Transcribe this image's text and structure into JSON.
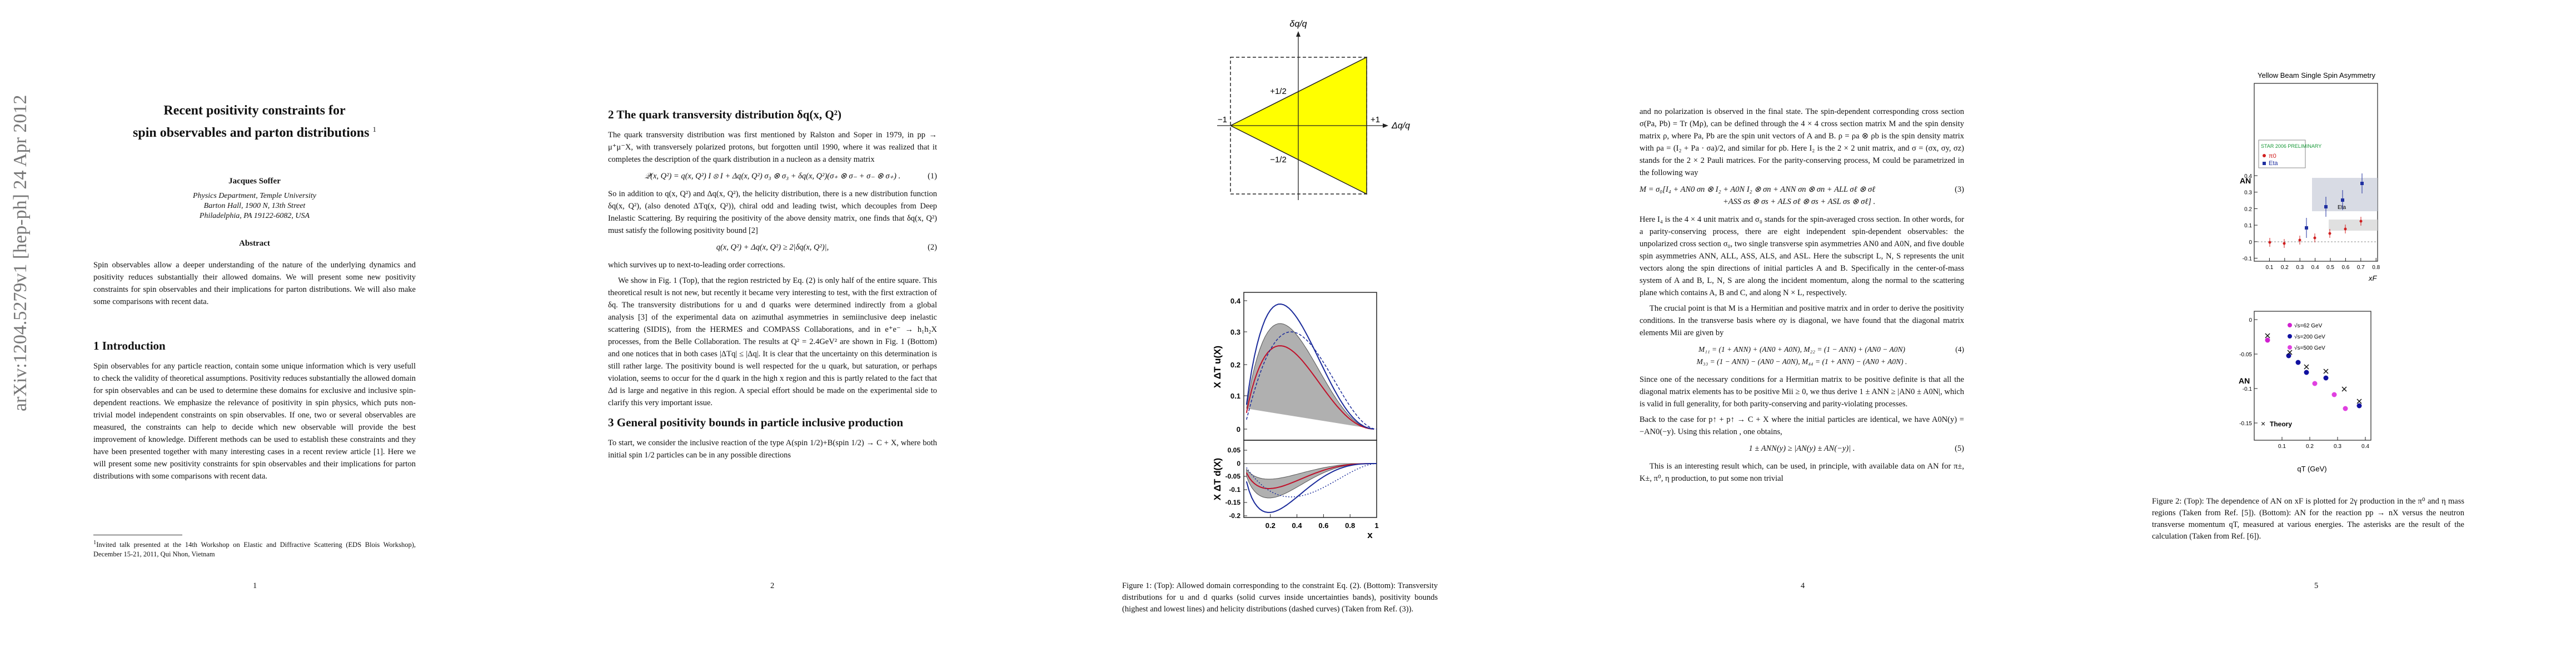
{
  "arxiv_stamp": "arXiv:1204.5279v1  [hep-ph]  24 Apr 2012",
  "page1": {
    "title_lines": [
      "Recent positivity constraints for",
      "spin observables and parton distributions"
    ],
    "title_footnote_mark": "1",
    "author": "Jacques Soffer",
    "affiliation": [
      "Physics Department, Temple University",
      "Barton Hall, 1900 N, 13th Street",
      "Philadelphia, PA 19122-6082, USA"
    ],
    "abstract_heading": "Abstract",
    "abstract": "Spin observables allow a deeper understanding of the nature of the underlying dynamics and positivity reduces substantially their allowed domains. We will present some new positivity constraints for spin observables and their implications for parton distributions. We will also make some comparisons with recent data.",
    "section_heading": "1   Introduction",
    "paragraph": "Spin observables for any particle reaction, contain some unique information which is very usefull to check the validity of theoretical assumptions. Positivity reduces substantially the allowed domain for spin observables and can be used to determine these domains for exclusive and inclusive spin-dependent reactions. We emphasize the relevance of positivity in spin physics, which puts non-trivial model independent constraints on spin observables. If one, two or several observables are measured, the constraints can help to decide which new observable will provide the best improvement of knowledge. Different methods can be used to establish these constraints and they have been presented together with many interesting cases in a recent review article [1]. Here we will present some new positivity constraints for spin observables and their implications for parton distributions with some comparisons with recent data.",
    "footnote_mark": "1",
    "footnote": "Invited talk presented at the 14th Workshop on Elastic and Diffractive Scattering (EDS Blois Workshop), December 15-21, 2011, Qui Nhon, Vietnam",
    "page_number": "1"
  },
  "page2": {
    "section2_heading": "2   The quark transversity distribution δq(x, Q²)",
    "p1": "The quark transversity distribution was first mentioned by Ralston and Soper in 1979, in pp → μ⁺μ⁻X, with transversely polarized protons, but forgotten until 1990, where it was realized that it completes the description of the quark distribution in a nucleon as a density matrix",
    "eq1": "𝒬(x, Q²) = q(x, Q²) I ⊗ I + Δq(x, Q²) σ₃ ⊗ σ₃ + δq(x, Q²)(σ₊ ⊗ σ₋ + σ₋ ⊗ σ₊) .",
    "eq1_number": "(1)",
    "p2": "So in addition to q(x, Q²) and Δq(x, Q²), the helicity distribution, there is a new distribution function δq(x, Q²), (also denoted ΔTq(x, Q²)), chiral odd and leading twist, which decouples from Deep Inelastic Scattering. By requiring the positivity of the above density matrix, one finds that δq(x, Q²) must satisfy the following positivity bound [2]",
    "eq2": "q(x, Q²) + Δq(x, Q²) ≥ 2|δq(x, Q²)|,",
    "eq2_number": "(2)",
    "p3": "which survives up to next-to-leading order corrections.",
    "p4": "We show in Fig. 1 (Top), that the region restricted by Eq. (2) is only half of the entire square. This theoretical result is not new, but recently it became very interesting to test, with the first extraction of δq. The transversity distributions for u and d quarks were determined indirectly from a global analysis [3] of the experimental data on azimuthal asymmetries in semiinclusive deep inelastic scattering (SIDIS), from the HERMES and COMPASS Collaborations, and in e⁺e⁻ → h₁h₂X processes, from the Belle Collaboration. The results at Q² = 2.4GeV² are shown in Fig. 1 (Bottom) and one notices that in both cases |ΔTq| ≤ |Δq|. It is clear that the uncertainty on this determination is still rather large. The positivity bound is well respected for the u quark, but saturation, or perhaps violation, seems to occur for the d quark in the high x region and this is partly related to the fact that Δd is large and negative in this region. A special effort should be made on the experimental side to clarify this very important issue.",
    "section3_heading": "3   General positivity bounds in particle inclusive production",
    "p5": "To start, we consider the inclusive reaction of the type A(spin 1/2)+B(spin 1/2) → C + X, where both initial spin 1/2 particles can be in any possible directions",
    "page_number": "2"
  },
  "page3": {
    "top_figure": {
      "y_axis_label": "δq/q",
      "x_axis_label": "Δq/q",
      "upper_half": "+1/2",
      "lower_half": "−1/2",
      "left_end": "−1",
      "right_end": "+1"
    },
    "bottom_figure": {
      "upper_y_label": "X ΔT u(X)",
      "upper_yticks": [
        "0.4",
        "0.3",
        "0.2",
        "0.1",
        "0"
      ],
      "lower_y_label": "X ΔT d(X)",
      "lower_yticks": [
        "0.05",
        "0",
        "-0.05",
        "-0.1",
        "-0.15",
        "-0.2"
      ],
      "xticks": [
        "0.2",
        "0.4",
        "0.6",
        "0.8",
        "1"
      ],
      "x_label": "x"
    },
    "caption": "Figure 1: (Top): Allowed domain corresponding to the constraint Eq. (2). (Bottom): Transversity distributions for u and d quarks (solid curves inside uncertainties bands), positivity bounds (highest and lowest lines) and helicity distributions (dashed curves) (Taken from Ref. (3))."
  },
  "page4": {
    "p1": "and no polarization is observed in the final state. The spin-dependent corresponding cross section σ(Pa, Pb) = Tr (Mρ), can be defined through the 4 × 4 cross section matrix M and the spin density matrix ρ, where Pa, Pb are the spin unit vectors of A and B. ρ = ρa ⊗ ρb is the spin density matrix with ρa = (I₂ + Pa · σa)/2, and similar for ρb. Here I₂ is the 2 × 2 unit matrix, and σ = (σx, σy, σz) stands for the 2 × 2 Pauli matrices. For the parity-conserving process, M could be parametrized in the following way",
    "eq3_line1": "M = σ₀[I₄ + AN0 σn ⊗ I₂ + A0N I₂ ⊗ σn + ANN σn ⊗ σn + ALL σℓ ⊗ σℓ",
    "eq3_line2": "+ASS σs ⊗ σs + ALS σℓ ⊗ σs + ASL σs ⊗ σℓ] .",
    "eq3_number": "(3)",
    "p2": "Here I₄ is the 4 × 4 unit matrix and σ₀ stands for the spin-averaged cross section. In other words, for a parity-conserving process, there are eight independent spin-dependent observables: the unpolarized cross section σ₀, two single transverse spin asymmetries AN0 and A0N, and five double spin asymmetries ANN, ALL, ASS, ALS, and ASL. Here the subscript L, N, S represents the unit vectors along the spin directions of initial particles A and B. Specifically in the center-of-mass system of A and B, L, N, S are along the incident momentum, along the normal to the scattering plane which contains A, B and C, and along N × L, respectively.",
    "p3": "The crucial point is that M is a Hermitian and positive matrix and in order to derive the positivity conditions. In the transverse basis where σy is diagonal, we have found that the diagonal matrix elements Mii are given by",
    "eq4_line1": "M₁₁ = (1 + ANN) + (AN0 + A0N),  M₂₂ = (1 − ANN) + (AN0 − A0N)",
    "eq4_line2": "M₃₃ = (1 − ANN) − (AN0 − A0N),  M₄₄ = (1 + ANN) − (AN0 + A0N) .",
    "eq4_number": "(4)",
    "p4": "Since one of the necessary conditions for a Hermitian matrix to be positive definite is that all the diagonal matrix elements has to be positive Mii ≥ 0, we thus derive 1 ± ANN ≥ |AN0 ± A0N|, which is valid in full generality, for both parity-conserving and parity-violating processes.",
    "p5": "Back to the case for p↑ + p↑ → C + X where the initial particles are identical, we have A0N(y) = −AN0(−y). Using this relation , one obtains,",
    "eq5": "1 ± ANN(y) ≥ |AN(y) ± AN(−y)| .",
    "eq5_number": "(5)",
    "p6": "This is an interesting result which, can be used, in principle, with available data on AN for π±, K±, π⁰, η production, to put some non trivial",
    "page_number": "4"
  },
  "page5": {
    "top_plot": {
      "title": "Yellow Beam Single Spin Asymmetry",
      "legend_heading": "STAR 2006 PRELIMINARY",
      "legend_pi0": "π0",
      "legend_eta": "Eta",
      "y_label": "AN",
      "yticks": [
        "0.4",
        "0.3",
        "0.2",
        "0.1",
        "0",
        "-0.1"
      ],
      "xticks": [
        "0.1",
        "0.2",
        "0.3",
        "0.4",
        "0.5",
        "0.6",
        "0.7",
        "0.8"
      ],
      "x_label": "xF",
      "eta_label": "Eta"
    },
    "bottom_plot": {
      "legend": [
        "√s=62 GeV",
        "√s=200 GeV",
        "√s=500 GeV"
      ],
      "theory_label": "Theory",
      "y_label": "AN",
      "yticks": [
        "0",
        "-0.05",
        "-0.1",
        "-0.15"
      ],
      "xticks": [
        "0.1",
        "0.2",
        "0.3",
        "0.4"
      ],
      "x_label": "qT (GeV)"
    },
    "caption": "Figure 2: (Top): The dependence of AN on xF is plotted for 2γ production in the π⁰ and η mass regions (Taken from Ref. [5]). (Bottom): AN for the reaction pp → nX versus the neutron transverse momentum qT, measured at various energies. The asterisks are the result of the calculation (Taken from Ref. [6]).",
    "page_number": "5"
  }
}
